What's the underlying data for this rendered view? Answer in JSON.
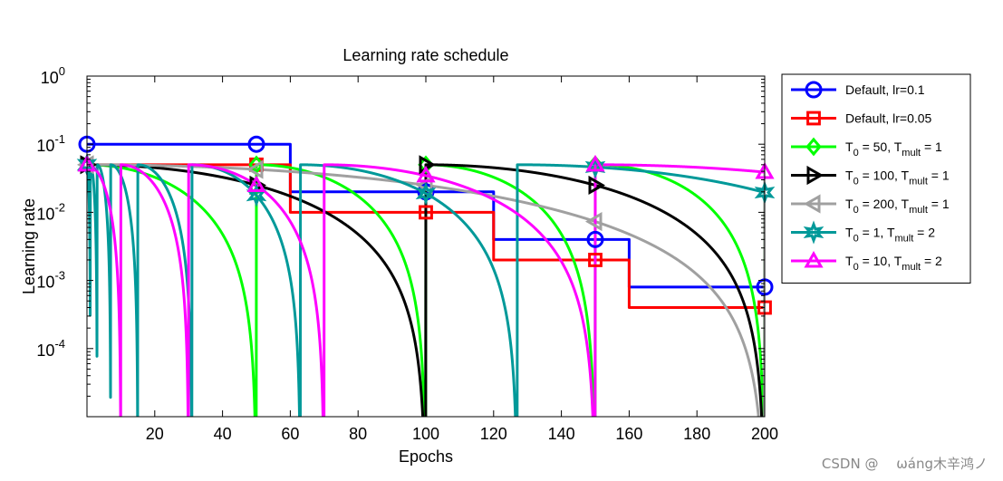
{
  "chart_data": {
    "type": "line",
    "title": "Learning rate schedule",
    "xlabel": "Epochs",
    "ylabel": "Learning rate",
    "xlim": [
      0,
      200
    ],
    "ylim_log10": [
      -5,
      0
    ],
    "y_scale": "log",
    "xticks": [
      20,
      40,
      60,
      80,
      100,
      120,
      140,
      160,
      180,
      200
    ],
    "yticks": [
      {
        "base": "10",
        "exp": "0",
        "value": 1
      },
      {
        "base": "10",
        "exp": "-1",
        "value": 0.1
      },
      {
        "base": "10",
        "exp": "-2",
        "value": 0.01
      },
      {
        "base": "10",
        "exp": "-3",
        "value": 0.001
      },
      {
        "base": "10",
        "exp": "-4",
        "value": 0.0001
      }
    ],
    "grid": false,
    "legend_position": "outside-right",
    "series": [
      {
        "name": "Default, lr=0.1",
        "legend": {
          "main": "Default, lr=0.1"
        },
        "color": "#0000ff",
        "marker": "circle",
        "kind": "step",
        "lr": 0.1,
        "steps": [
          60,
          120,
          160
        ],
        "gamma": 0.2,
        "markers_x": [
          0,
          50,
          100,
          150,
          200
        ]
      },
      {
        "name": "Default, lr=0.05",
        "legend": {
          "main": "Default, lr=0.05"
        },
        "color": "#ff0000",
        "marker": "square",
        "kind": "step",
        "lr": 0.05,
        "steps": [
          60,
          120,
          160
        ],
        "gamma": 0.2,
        "markers_x": [
          50,
          100,
          150,
          200
        ]
      },
      {
        "name": "T0 = 50, Tmult = 1",
        "legend": {
          "a": "T",
          "a_sub": "0",
          "b": " = 50, T",
          "b_sub": "mult",
          "c": " = 1"
        },
        "color": "#00ff00",
        "marker": "diamond",
        "kind": "cosine",
        "lr": 0.05,
        "T0": 50,
        "Tmult": 1,
        "markers_x": [
          0,
          50,
          100,
          150,
          200
        ]
      },
      {
        "name": "T0 = 100, Tmult = 1",
        "legend": {
          "a": "T",
          "a_sub": "0",
          "b": " = 100, T",
          "b_sub": "mult",
          "c": " = 1"
        },
        "color": "#000000",
        "marker": "triangle-right",
        "kind": "cosine",
        "lr": 0.05,
        "T0": 100,
        "Tmult": 1,
        "markers_x": [
          0,
          50,
          100,
          150,
          200
        ]
      },
      {
        "name": "T0 = 200, Tmult = 1",
        "legend": {
          "a": "T",
          "a_sub": "0",
          "b": " = 200, T",
          "b_sub": "mult",
          "c": " = 1"
        },
        "color": "#a0a0a0",
        "marker": "triangle-left",
        "kind": "cosine",
        "lr": 0.05,
        "T0": 200,
        "Tmult": 1,
        "markers_x": [
          0,
          50,
          100,
          150,
          200
        ]
      },
      {
        "name": "T0 = 1, Tmult = 2",
        "legend": {
          "a": "T",
          "a_sub": "0",
          "b": " = 1, T",
          "b_sub": "mult",
          "c": " = 2"
        },
        "color": "#009999",
        "marker": "hexagram",
        "kind": "cosine",
        "lr": 0.05,
        "T0": 1,
        "Tmult": 2,
        "markers_x": [
          0,
          50,
          100,
          150,
          200
        ]
      },
      {
        "name": "T0 = 10, Tmult = 2",
        "legend": {
          "a": "T",
          "a_sub": "0",
          "b": " = 10, T",
          "b_sub": "mult",
          "c": " = 2"
        },
        "color": "#ff00ff",
        "marker": "triangle-up",
        "kind": "cosine",
        "lr": 0.05,
        "T0": 10,
        "Tmult": 2,
        "markers_x": [
          0,
          50,
          100,
          150,
          200
        ]
      }
    ]
  },
  "watermark": "CSDN @ 　ωáng木辛鸿ノ"
}
